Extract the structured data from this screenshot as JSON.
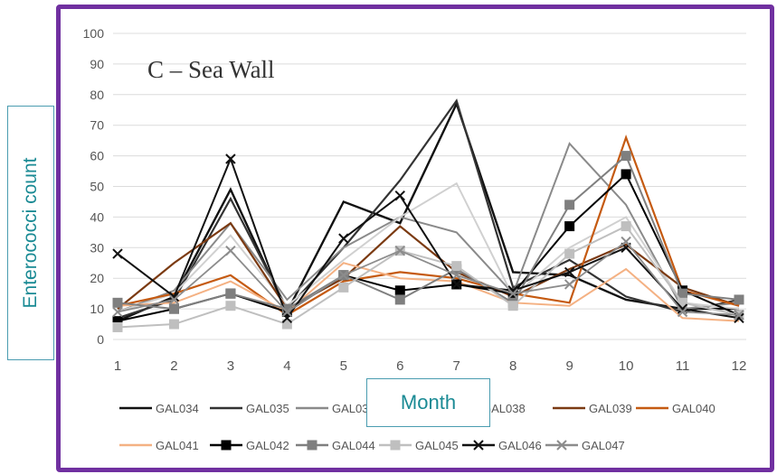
{
  "chart_data": {
    "type": "line",
    "title": "C – Sea Wall",
    "xlabel": "Month",
    "ylabel": "Enterococci count",
    "categories": [
      "1",
      "2",
      "3",
      "4",
      "5",
      "6",
      "7",
      "8",
      "9",
      "10",
      "11",
      "12"
    ],
    "y_ticks": [
      "0",
      "10",
      "20",
      "30",
      "40",
      "50",
      "60",
      "70",
      "80",
      "90",
      "100"
    ],
    "ylim": [
      0,
      100
    ],
    "grid": "horizontal",
    "legend_position": "bottom",
    "series": [
      {
        "name": "GAL034",
        "color": "#111111",
        "marker": "none",
        "width": 2.4,
        "values": [
          6,
          14,
          49,
          9,
          45,
          38,
          77,
          22,
          21,
          13,
          10,
          10
        ]
      },
      {
        "name": "GAL035",
        "color": "#333333",
        "marker": "none",
        "width": 2.2,
        "values": [
          7,
          13,
          46,
          10,
          30,
          52,
          78,
          17,
          26,
          14,
          9,
          13
        ]
      },
      {
        "name": "GAL03",
        "color": "#8a8a8a",
        "marker": "none",
        "width": 2.0,
        "values": [
          9,
          16,
          38,
          13,
          30,
          40,
          35,
          15,
          64,
          44,
          10,
          12
        ]
      },
      {
        "name": "GAL038",
        "color": "#d0d0d0",
        "marker": "none",
        "width": 2.0,
        "values": [
          9,
          15,
          34,
          11,
          26,
          40,
          51,
          14,
          30,
          40,
          12,
          10
        ]
      },
      {
        "name": "GAL039",
        "color": "#7b3a12",
        "marker": "none",
        "width": 2.2,
        "values": [
          10,
          25,
          38,
          10,
          20,
          37,
          22,
          14,
          23,
          31,
          17,
          11
        ]
      },
      {
        "name": "GAL040",
        "color": "#c55a11",
        "marker": "none",
        "width": 2.2,
        "values": [
          11,
          15,
          21,
          8,
          19,
          22,
          20,
          15,
          12,
          66,
          16,
          11
        ]
      },
      {
        "name": "GAL041",
        "color": "#f4b183",
        "marker": "none",
        "width": 2.0,
        "values": [
          11,
          12,
          19,
          9,
          25,
          20,
          19,
          12,
          11,
          23,
          7,
          6
        ]
      },
      {
        "name": "GAL042",
        "color": "#000000",
        "marker": "square",
        "width": 2.0,
        "values": [
          6,
          10,
          15,
          9,
          21,
          16,
          18,
          15,
          37,
          54,
          16,
          8
        ]
      },
      {
        "name": "GAL044",
        "color": "#7f7f7f",
        "marker": "square",
        "width": 2.0,
        "values": [
          12,
          10,
          15,
          10,
          21,
          13,
          23,
          12,
          44,
          60,
          15,
          13
        ]
      },
      {
        "name": "GAL045",
        "color": "#bfbfbf",
        "marker": "square",
        "width": 2.0,
        "values": [
          4,
          5,
          11,
          5,
          17,
          29,
          24,
          11,
          28,
          37,
          12,
          8
        ]
      },
      {
        "name": "GAL046",
        "color": "#111111",
        "marker": "x",
        "width": 2.0,
        "values": [
          28,
          14,
          59,
          7,
          33,
          47,
          18,
          16,
          22,
          30,
          10,
          7
        ]
      },
      {
        "name": "GAL047",
        "color": "#8c8c8c",
        "marker": "x",
        "width": 1.8,
        "values": [
          9,
          13,
          29,
          9,
          21,
          29,
          21,
          15,
          18,
          32,
          9,
          8
        ]
      }
    ]
  }
}
